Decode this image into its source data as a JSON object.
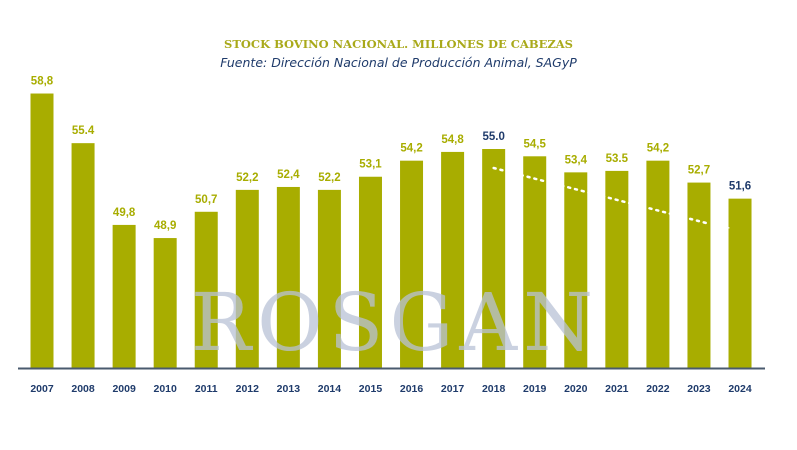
{
  "chart_data": {
    "type": "bar",
    "title": "STOCK BOVINO NACIONAL. MILLONES DE CABEZAS",
    "subtitle": "Fuente: Dirección Nacional de Producción Animal, SAGyP",
    "categories": [
      "2007",
      "2008",
      "2009",
      "2010",
      "2011",
      "2012",
      "2013",
      "2014",
      "2015",
      "2016",
      "2017",
      "2018",
      "2019",
      "2020",
      "2021",
      "2022",
      "2023",
      "2024"
    ],
    "values": [
      58.8,
      55.4,
      49.8,
      48.9,
      50.7,
      52.2,
      52.4,
      52.2,
      53.1,
      54.2,
      54.8,
      55.0,
      54.5,
      53.4,
      53.5,
      54.2,
      52.7,
      51.6
    ],
    "data_labels": [
      "58,8",
      "55.4",
      "49,8",
      "48,9",
      "50,7",
      "52,2",
      "52,4",
      "52,2",
      "53,1",
      "54,2",
      "54,8",
      "55.0",
      "54,5",
      "53,4",
      "53.5",
      "54,2",
      "52,7",
      "51,6"
    ],
    "highlighted": [
      "2018",
      "2024"
    ],
    "xlabel": "",
    "ylabel": "",
    "ylim": [
      40,
      60
    ],
    "grid": false,
    "trend_line": {
      "from": "2018",
      "to": "2024",
      "style": "dotted-arrow"
    },
    "watermark": "ROSGAN",
    "colors": {
      "bar": "#a8ad00",
      "label": "#a8ad00",
      "highlight_label": "#1f3b6b",
      "axis": "#4a5a6e",
      "tick": "#1f3b6b",
      "watermark": "#b9c2d6"
    }
  }
}
